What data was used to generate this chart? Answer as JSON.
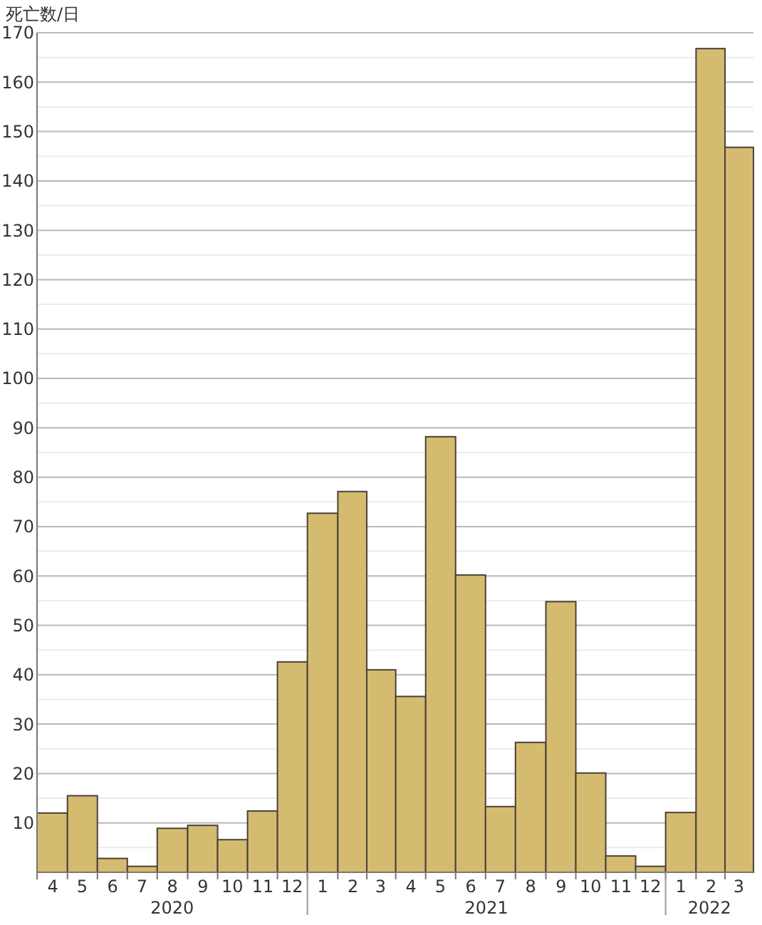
{
  "chart_data": {
    "type": "bar",
    "ylabel": "死亡数/日",
    "x": [
      "2020-04",
      "2020-05",
      "2020-06",
      "2020-07",
      "2020-08",
      "2020-09",
      "2020-10",
      "2020-11",
      "2020-12",
      "2021-01",
      "2021-02",
      "2021-03",
      "2021-04",
      "2021-05",
      "2021-06",
      "2021-07",
      "2021-08",
      "2021-09",
      "2021-10",
      "2021-11",
      "2021-12",
      "2022-01",
      "2022-02",
      "2022-03"
    ],
    "values": [
      12.0,
      15.5,
      2.8,
      1.2,
      8.9,
      9.5,
      6.6,
      12.4,
      42.6,
      72.7,
      77.1,
      41.0,
      35.6,
      88.2,
      60.2,
      13.3,
      26.3,
      54.8,
      20.1,
      3.3,
      1.2,
      12.1,
      166.8,
      146.8
    ],
    "xticks": [
      {
        "value": "2020-04",
        "label": "4"
      },
      {
        "value": "2020-05",
        "label": "5"
      },
      {
        "value": "2020-06",
        "label": "6"
      },
      {
        "value": "2020-07",
        "label": "7"
      },
      {
        "value": "2020-08",
        "label": "8"
      },
      {
        "value": "2020-09",
        "label": "9"
      },
      {
        "value": "2020-10",
        "label": "10"
      },
      {
        "value": "2020-11",
        "label": "11"
      },
      {
        "value": "2020-12",
        "label": "12"
      },
      {
        "value": "2021-01",
        "label": "1"
      },
      {
        "value": "2021-02",
        "label": "2"
      },
      {
        "value": "2021-03",
        "label": "3"
      },
      {
        "value": "2021-04",
        "label": "4"
      },
      {
        "value": "2021-05",
        "label": "5"
      },
      {
        "value": "2021-06",
        "label": "6"
      },
      {
        "value": "2021-07",
        "label": "7"
      },
      {
        "value": "2021-08",
        "label": "8"
      },
      {
        "value": "2021-09",
        "label": "9"
      },
      {
        "value": "2021-10",
        "label": "10"
      },
      {
        "value": "2021-11",
        "label": "11"
      },
      {
        "value": "2021-12",
        "label": "12"
      },
      {
        "value": "2022-01",
        "label": "1"
      },
      {
        "value": "2022-02",
        "label": "2"
      },
      {
        "value": "2022-03",
        "label": "3"
      }
    ],
    "xlim": [
      "2020-03-16",
      "2022-03-16"
    ],
    "annotations": [
      "2020",
      "2021",
      "2022"
    ],
    "color": "#d5bb6f",
    "ylim": [
      0,
      170
    ],
    "yticks": [
      {
        "value": 5,
        "label": null
      },
      10,
      {
        "value": 15,
        "label": null
      },
      20,
      {
        "value": 25,
        "label": null
      },
      30,
      {
        "value": 35,
        "label": null
      },
      40,
      {
        "value": 45,
        "label": null
      },
      50,
      {
        "value": 55,
        "label": null
      },
      60,
      {
        "value": 65,
        "label": null
      },
      70,
      {
        "value": 75,
        "label": null
      },
      80,
      {
        "value": 85,
        "label": null
      },
      90,
      {
        "value": 95,
        "label": null
      },
      100,
      {
        "value": 105,
        "label": null
      },
      110,
      {
        "value": 115,
        "label": null
      },
      120,
      {
        "value": 125,
        "label": null
      },
      130,
      {
        "value": 135,
        "label": null
      },
      140,
      {
        "value": 145,
        "label": null
      },
      150,
      {
        "value": 155,
        "label": null
      },
      160,
      {
        "value": 165,
        "label": null
      },
      170
    ],
    "grid": "y"
  }
}
